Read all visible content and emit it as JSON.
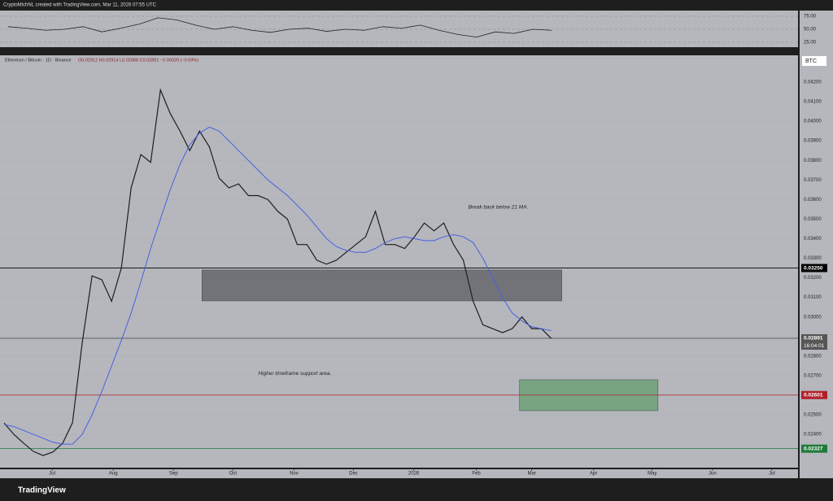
{
  "header": {
    "author": "CryptoMichNL created with TradingView.com, Mar 11, 2026 07:55 UTC",
    "brand": "TradingView"
  },
  "chart_data": [
    {
      "type": "line",
      "title": "Ethereum / Bitcoin · 1D · Binance",
      "ohlc": "O0.02912 H0.02914 L0.02888 C0.02891 −0.00020 (−0.69%)",
      "currency": "BTC",
      "countdown": "16:04:01",
      "xlim": [
        -0.42,
        81.25
      ],
      "xticks": [
        {
          "value": 4.92,
          "label": "Jul"
        },
        {
          "value": 11.17,
          "label": "Aug"
        },
        {
          "value": 17.33,
          "label": "Sep"
        },
        {
          "value": 23.42,
          "label": "Oct"
        },
        {
          "value": 29.67,
          "label": "Nov"
        },
        {
          "value": 35.75,
          "label": "Dec"
        },
        {
          "value": 41.92,
          "label": "2026"
        },
        {
          "value": 48.33,
          "label": "Feb"
        },
        {
          "value": 54,
          "label": "Mar"
        },
        {
          "value": 60.33,
          "label": "Apr"
        },
        {
          "value": 66.33,
          "label": "May"
        },
        {
          "value": 72.5,
          "label": "Jun"
        },
        {
          "value": 78.58,
          "label": "Jul"
        }
      ],
      "ylim": [
        0.0223,
        0.04337
      ],
      "yticks": [
        {
          "value": 0.024,
          "label": "0.02400"
        },
        {
          "value": 0.025,
          "label": "0.02500"
        },
        {
          "value": 0.026,
          "label": "0.02600"
        },
        {
          "value": 0.027,
          "label": "0.02700"
        },
        {
          "value": 0.028,
          "label": "0.02800"
        },
        {
          "value": 0.029,
          "label": "0.02900"
        },
        {
          "value": 0.03,
          "label": "0.03000"
        },
        {
          "value": 0.031,
          "label": "0.03100"
        },
        {
          "value": 0.032,
          "label": "0.03200"
        },
        {
          "value": 0.033,
          "label": "0.03300"
        },
        {
          "value": 0.034,
          "label": "0.03400"
        },
        {
          "value": 0.035,
          "label": "0.03500"
        },
        {
          "value": 0.036,
          "label": "0.03600"
        },
        {
          "value": 0.037,
          "label": "0.03700"
        },
        {
          "value": 0.038,
          "label": "0.03800"
        },
        {
          "value": 0.039,
          "label": "0.03900"
        },
        {
          "value": 0.04,
          "label": "0.04000"
        },
        {
          "value": 0.041,
          "label": "0.04100"
        },
        {
          "value": 0.042,
          "label": "0.04200"
        }
      ],
      "series": [
        {
          "name": "Price",
          "color": "#1e1e1e",
          "values": [
            0.02458,
            0.024,
            0.02355,
            0.02313,
            0.02292,
            0.0231,
            0.02355,
            0.0246,
            0.0287,
            0.0321,
            0.0319,
            0.0308,
            0.0325,
            0.0366,
            0.0383,
            0.0379,
            0.0416,
            0.0404,
            0.0395,
            0.0385,
            0.0395,
            0.0387,
            0.0371,
            0.0366,
            0.0368,
            0.0362,
            0.0362,
            0.036,
            0.0354,
            0.035,
            0.0337,
            0.0337,
            0.0329,
            0.0327,
            0.0329,
            0.0333,
            0.0337,
            0.0341,
            0.0354,
            0.0337,
            0.0337,
            0.0335,
            0.0341,
            0.0348,
            0.0344,
            0.0348,
            0.0337,
            0.0329,
            0.0308,
            0.0296,
            0.0294,
            0.0292,
            0.0294,
            0.03,
            0.0294,
            0.0294,
            0.0289
          ]
        },
        {
          "name": "MA 21",
          "color": "#4a5fe0",
          "values": [
            0.0245,
            0.0244,
            0.0242,
            0.024,
            0.0238,
            0.0236,
            0.0235,
            0.0235,
            0.024,
            0.025,
            0.0262,
            0.0275,
            0.0288,
            0.0302,
            0.0318,
            0.0335,
            0.035,
            0.0365,
            0.0378,
            0.0388,
            0.0394,
            0.0397,
            0.0395,
            0.039,
            0.0385,
            0.038,
            0.0375,
            0.037,
            0.0366,
            0.0362,
            0.0357,
            0.0352,
            0.0346,
            0.034,
            0.0336,
            0.0334,
            0.0333,
            0.0333,
            0.0335,
            0.0338,
            0.034,
            0.0341,
            0.034,
            0.0339,
            0.0339,
            0.0341,
            0.0342,
            0.0341,
            0.0338,
            0.033,
            0.032,
            0.031,
            0.0302,
            0.0298,
            0.0295,
            0.0294,
            0.0293
          ]
        }
      ],
      "levels": [
        {
          "value": 0.0325,
          "label": "0.03250",
          "color": "#000000"
        },
        {
          "value": 0.02891,
          "label": "0.02891",
          "color": "#555555"
        },
        {
          "value": 0.02601,
          "label": "0.02601",
          "color": "#b0202a"
        },
        {
          "value": 0.02327,
          "label": "0.02327",
          "color": "#1e7a3a"
        }
      ],
      "zones": [
        {
          "x": [
            20.25,
            57.08
          ],
          "y": [
            0.03082,
            0.0324
          ],
          "color": "rgba(70,70,75,0.6)"
        },
        {
          "x": [
            52.75,
            66.92
          ],
          "y": [
            0.02521,
            0.02679
          ],
          "color": "rgba(70,150,80,0.55)"
        }
      ],
      "annotations": [
        {
          "text": "Break back below 21 MA.",
          "x": 47.5,
          "y": 0.0356
        },
        {
          "text": "Higher timeframe support area.",
          "x": 26,
          "y": 0.0271
        }
      ]
    },
    {
      "type": "line",
      "ylim": [
        20.3,
        82.8
      ],
      "yticks": [
        {
          "value": 75,
          "label": "75.00"
        },
        {
          "value": 50,
          "label": "50.00"
        },
        {
          "value": 25,
          "label": "25.00"
        }
      ],
      "series": [
        {
          "name": "RSI",
          "color": "#222222",
          "values": [
            55,
            52,
            48,
            50,
            55,
            45,
            52,
            60,
            72,
            68,
            58,
            50,
            55,
            48,
            44,
            50,
            52,
            46,
            50,
            48,
            55,
            52,
            58,
            48,
            40,
            35,
            45,
            42,
            50,
            48
          ]
        }
      ]
    }
  ]
}
